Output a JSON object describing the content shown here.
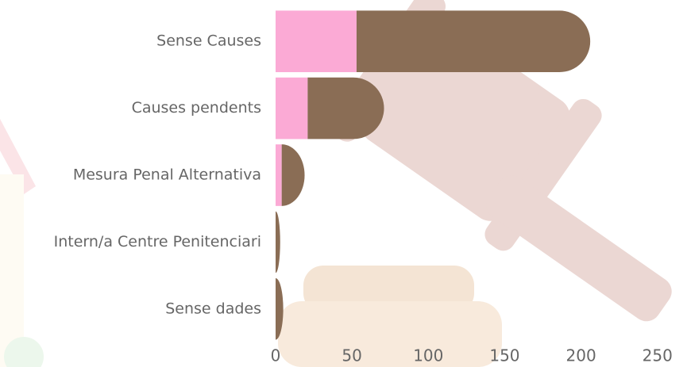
{
  "chart_data": {
    "type": "stacked-barh",
    "categories": [
      "Sense Causes",
      "Causes pendents",
      "Mesura Penal Alternativa",
      "Intern/a Centre Penitenciari",
      "Sense dades"
    ],
    "series": [
      {
        "color": "#fbaad5",
        "values": [
          53,
          21,
          4,
          0,
          0
        ]
      },
      {
        "color": "#8a6d55",
        "values": [
          153,
          50,
          15,
          3,
          5
        ]
      }
    ],
    "xlim": [
      0,
      260
    ],
    "xticks": [
      0,
      50,
      100,
      150,
      200,
      250
    ]
  }
}
